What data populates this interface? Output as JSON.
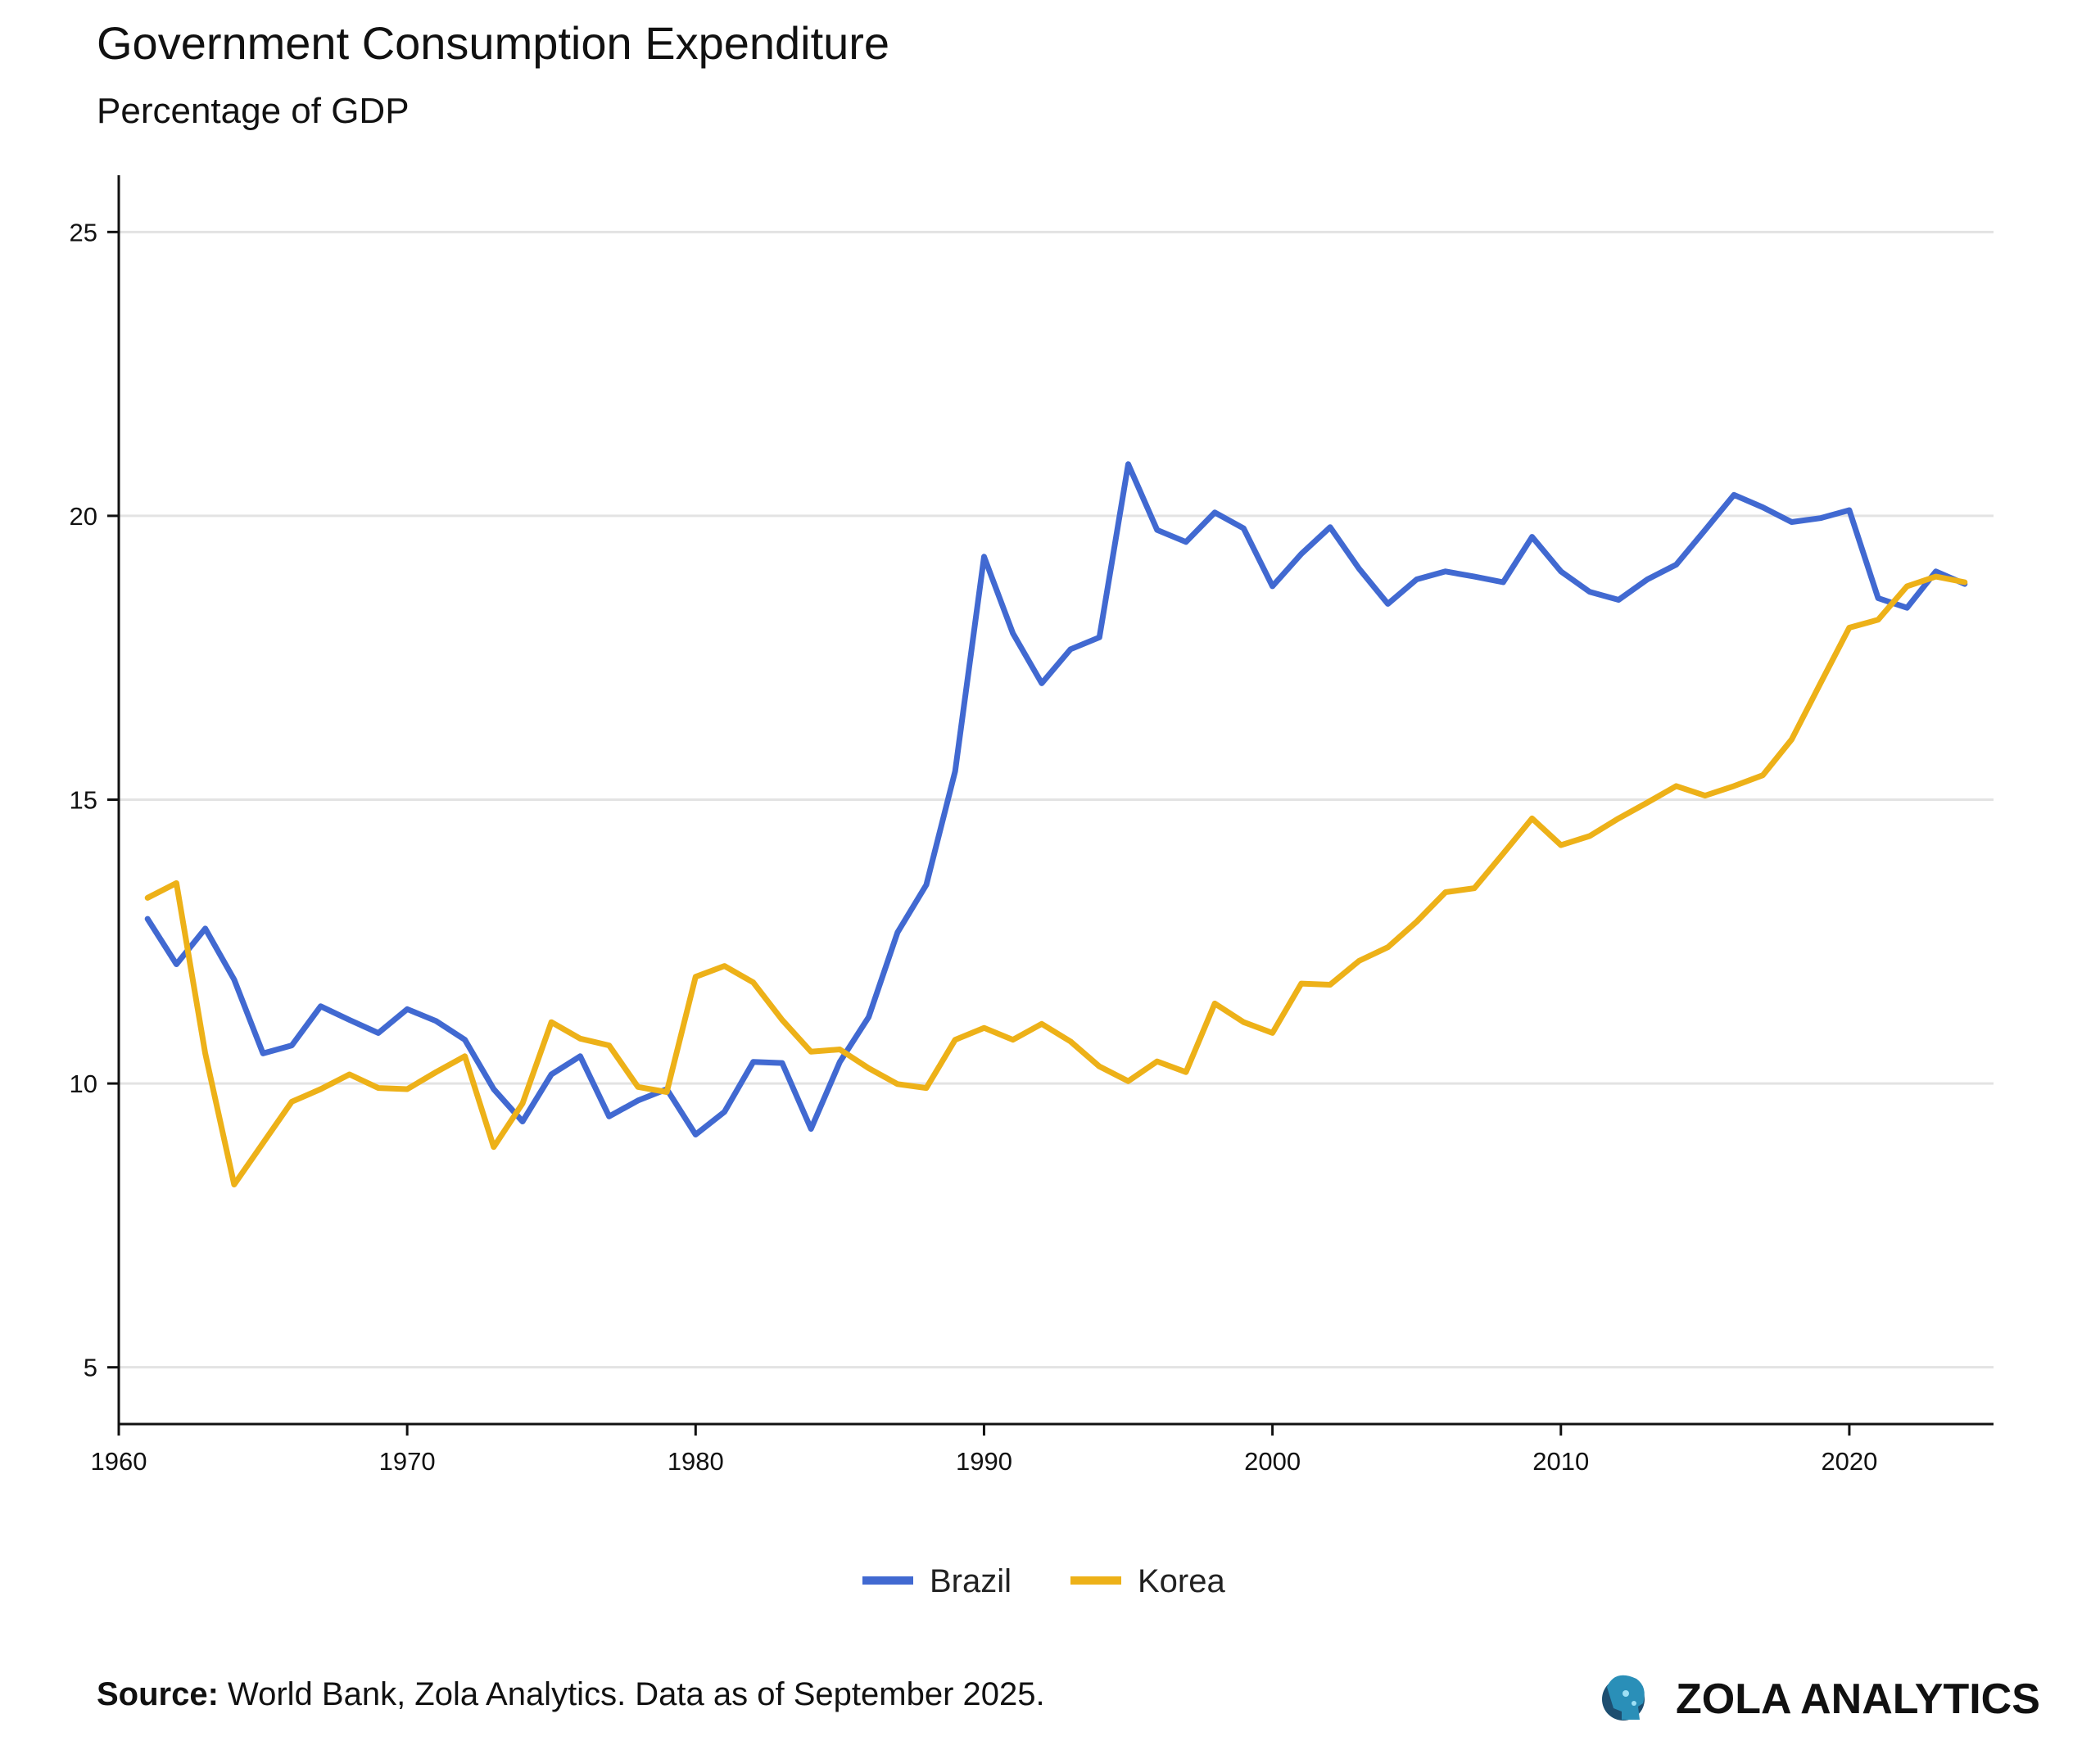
{
  "chart_data": {
    "type": "line",
    "title": "Government Consumption Expenditure",
    "subtitle": "Percentage of GDP",
    "xlabel": "",
    "ylabel": "",
    "xlim": [
      1960,
      2025
    ],
    "ylim": [
      4,
      26
    ],
    "xticks": [
      1960,
      1970,
      1980,
      1990,
      2000,
      2010,
      2020
    ],
    "yticks": [
      5,
      10,
      15,
      20,
      25
    ],
    "grid": "horizontal",
    "legend_position": "bottom",
    "x": [
      1961,
      1962,
      1963,
      1964,
      1965,
      1966,
      1967,
      1968,
      1969,
      1970,
      1971,
      1972,
      1973,
      1974,
      1975,
      1976,
      1977,
      1978,
      1979,
      1980,
      1981,
      1982,
      1983,
      1984,
      1985,
      1986,
      1987,
      1988,
      1989,
      1990,
      1991,
      1992,
      1993,
      1994,
      1995,
      1996,
      1997,
      1998,
      1999,
      2000,
      2001,
      2002,
      2003,
      2004,
      2005,
      2006,
      2007,
      2008,
      2009,
      2010,
      2011,
      2012,
      2013,
      2014,
      2015,
      2016,
      2017,
      2018,
      2019,
      2020,
      2021,
      2022,
      2023,
      2024
    ],
    "series": [
      {
        "name": "Brazil",
        "color": "#4169D1",
        "values": [
          12.9,
          12.1,
          12.73,
          11.83,
          10.53,
          10.67,
          11.36,
          11.12,
          10.89,
          11.31,
          11.1,
          10.77,
          9.9,
          9.33,
          10.16,
          10.48,
          9.42,
          9.7,
          9.9,
          9.1,
          9.5,
          10.38,
          10.36,
          9.2,
          10.38,
          11.17,
          12.66,
          13.5,
          15.5,
          19.28,
          17.93,
          17.05,
          17.65,
          17.86,
          20.91,
          19.75,
          19.54,
          20.06,
          19.78,
          18.76,
          19.33,
          19.8,
          19.07,
          18.45,
          18.88,
          19.02,
          18.93,
          18.83,
          19.63,
          19.02,
          18.66,
          18.52,
          18.88,
          19.14,
          19.75,
          20.37,
          20.15,
          19.89,
          19.96,
          20.1,
          18.55,
          18.38,
          19.02,
          18.8
        ]
      },
      {
        "name": "Korea",
        "color": "#EDB118",
        "values": [
          13.27,
          13.53,
          10.53,
          8.22,
          8.95,
          9.68,
          9.9,
          10.16,
          9.92,
          9.9,
          10.2,
          10.48,
          8.88,
          9.65,
          11.08,
          10.79,
          10.67,
          9.94,
          9.85,
          11.88,
          12.07,
          11.78,
          11.12,
          10.56,
          10.6,
          10.27,
          9.99,
          9.92,
          10.77,
          10.98,
          10.77,
          11.05,
          10.74,
          10.3,
          10.04,
          10.39,
          10.2,
          11.41,
          11.08,
          10.89,
          11.76,
          11.74,
          12.16,
          12.4,
          12.85,
          13.37,
          13.44,
          14.05,
          14.67,
          14.2,
          14.36,
          14.67,
          14.95,
          15.24,
          15.07,
          15.24,
          15.43,
          16.06,
          17.05,
          18.03,
          18.17,
          18.76,
          18.93,
          18.83
        ]
      }
    ]
  },
  "footer": {
    "source_label": "Source:",
    "source_text": " World Bank, Zola Analytics. Data as of September 2025.",
    "brand": "ZOLA ANALYTICS",
    "brand_icon": "head-circuit-logo"
  }
}
